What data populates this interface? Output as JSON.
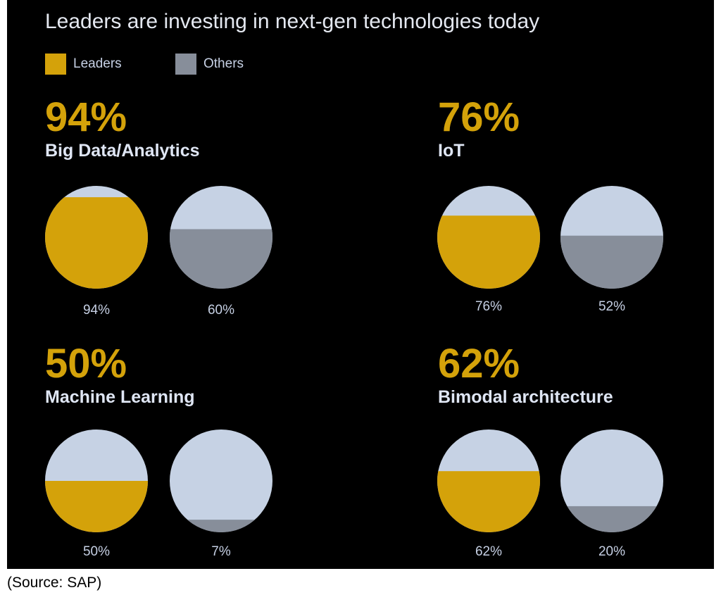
{
  "colors": {
    "leaders": "#d4a20a",
    "others": "#878e9a",
    "empty": "#c6d2e4",
    "background": "#000000"
  },
  "source": "(Source: SAP)",
  "chart_data": {
    "type": "pie",
    "title": "Leaders are investing in next-gen technologies today",
    "legend": [
      {
        "name": "Leaders",
        "color": "#d4a20a"
      },
      {
        "name": "Others",
        "color": "#878e9a"
      }
    ],
    "panels": [
      {
        "headline": "94%",
        "name": "Big Data/Analytics",
        "leaders": 94,
        "leaders_label": "94%",
        "others": 60,
        "others_label": "60%"
      },
      {
        "headline": "76%",
        "name": "IoT",
        "leaders": 76,
        "leaders_label": "76%",
        "others": 52,
        "others_label": "52%"
      },
      {
        "headline": "50%",
        "name": "Machine Learning",
        "leaders": 50,
        "leaders_label": "50%",
        "others": 7,
        "others_label": "7%"
      },
      {
        "headline": "62%",
        "name": "Bimodal architecture",
        "leaders": 62,
        "leaders_label": "62%",
        "others": 20,
        "others_label": "20%"
      }
    ]
  }
}
